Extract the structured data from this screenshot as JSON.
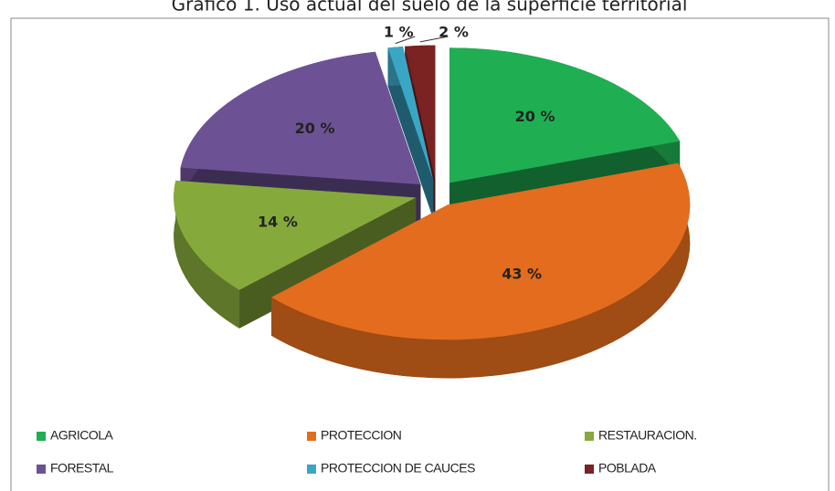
{
  "chart_data": {
    "type": "pie3d",
    "title": "Gráfico 1. Uso actual del suelo de la superficie territorial",
    "categories": [
      "AGRICOLA",
      "PROTECCION",
      "RESTAURACION.",
      "FORESTAL",
      "PROTECCION DE CAUCES",
      "POBLADA"
    ],
    "values": [
      20,
      43,
      14,
      20,
      1,
      2
    ],
    "value_labels": [
      "20 %",
      "43 %",
      "14 %",
      "20 %",
      "1 %",
      "2 %"
    ],
    "colors": [
      "#1fae52",
      "#e36c1e",
      "#86a93c",
      "#6c5295",
      "#3aa6c6",
      "#7b2222"
    ],
    "legend": "bottom"
  }
}
